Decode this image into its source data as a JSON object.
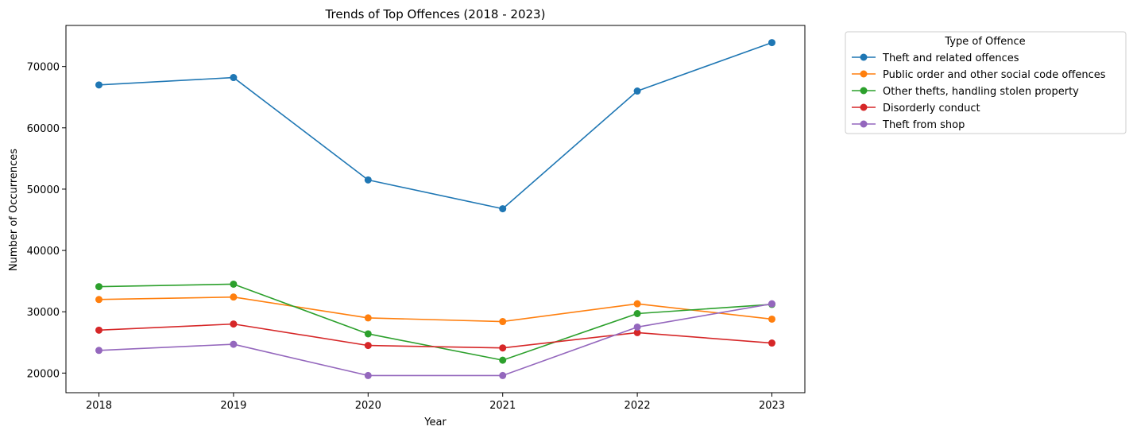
{
  "chart_data": {
    "type": "line",
    "title": "Trends of Top Offences (2018 - 2023)",
    "xlabel": "Year",
    "ylabel": "Number of Occurrences",
    "x": [
      "2018",
      "2019",
      "2020",
      "2021",
      "2022",
      "2023"
    ],
    "ylim": [
      16800,
      76700
    ],
    "yticks": [
      20000,
      30000,
      40000,
      50000,
      60000,
      70000
    ],
    "grid": false,
    "legend": {
      "title": "Type of Offence",
      "placement": "outside-top-right"
    },
    "series": [
      {
        "name": "Theft and related offences",
        "color": "#1f77b4",
        "values": [
          67000,
          68200,
          51500,
          46800,
          66000,
          73900
        ]
      },
      {
        "name": "Public order and other social code offences",
        "color": "#ff7f0e",
        "values": [
          32000,
          32400,
          29000,
          28400,
          31300,
          28800
        ]
      },
      {
        "name": "Other thefts, handling stolen property",
        "color": "#2ca02c",
        "values": [
          34100,
          34500,
          26400,
          22100,
          29700,
          31200
        ]
      },
      {
        "name": "Disorderly conduct",
        "color": "#d62728",
        "values": [
          27000,
          28000,
          24500,
          24100,
          26600,
          24900
        ]
      },
      {
        "name": "Theft from shop",
        "color": "#9467bd",
        "values": [
          23700,
          24700,
          19600,
          19600,
          27500,
          31300
        ]
      }
    ]
  }
}
